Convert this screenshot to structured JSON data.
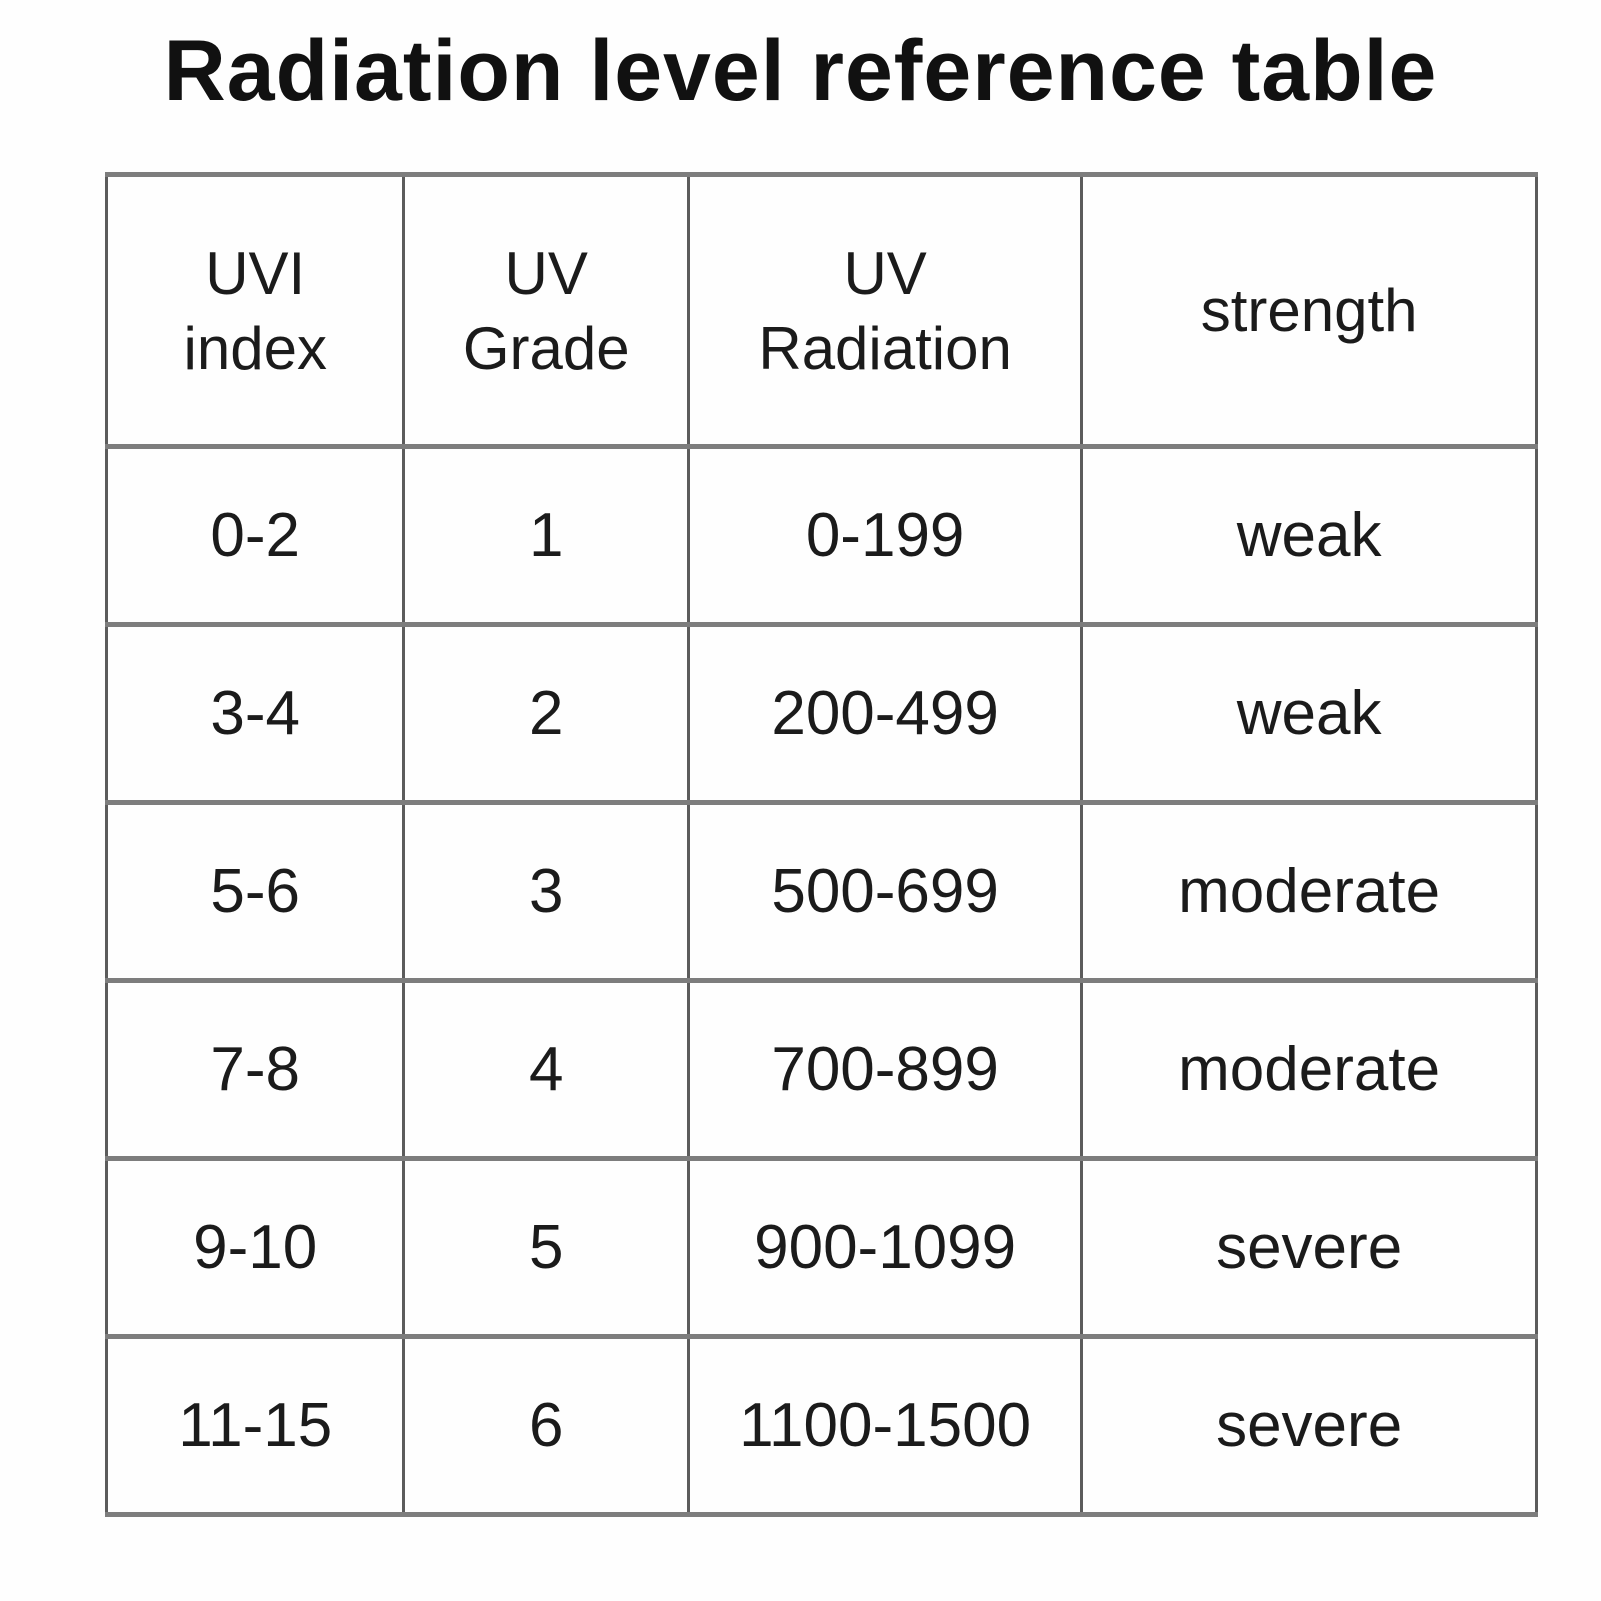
{
  "title": "Radiation level reference table",
  "colors": {
    "background": "#ffffff",
    "text": "#1b1b1b",
    "grid_horizontal": "#7d7d7d",
    "grid_vertical": "#5c5c5c"
  },
  "table": {
    "columns": [
      "UVI\nindex",
      "UV\nGrade",
      "UV\nRadiation",
      "strength"
    ],
    "rows": [
      [
        "0-2",
        "1",
        "0-199",
        "weak"
      ],
      [
        "3-4",
        "2",
        "200-499",
        "weak"
      ],
      [
        "5-6",
        "3",
        "500-699",
        "moderate"
      ],
      [
        "7-8",
        "4",
        "700-899",
        "moderate"
      ],
      [
        "9-10",
        "5",
        "900-1099",
        "severe"
      ],
      [
        "11-15",
        "6",
        "1100-1500",
        "severe"
      ]
    ]
  }
}
